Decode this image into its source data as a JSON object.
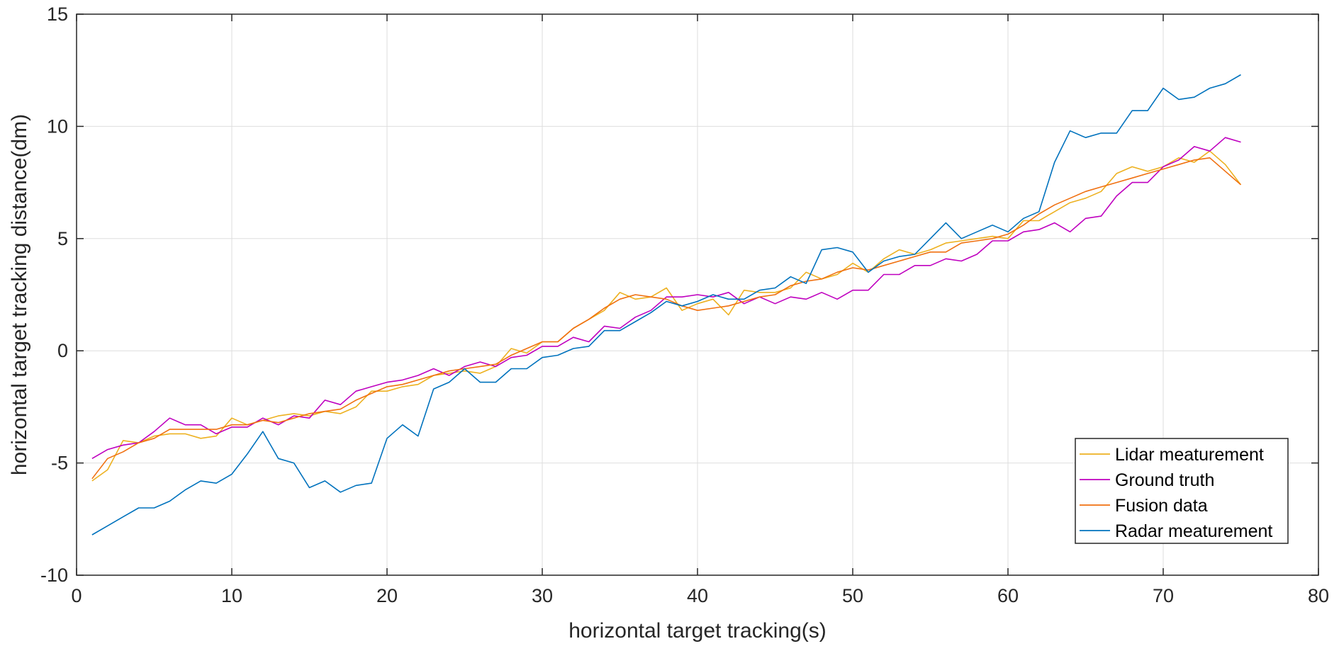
{
  "chart_data": {
    "type": "line",
    "title": "",
    "xlabel": "horizontal target tracking(s)",
    "ylabel": "horizontal target tracking distance(dm)",
    "xlim": [
      0,
      80
    ],
    "ylim": [
      -10,
      15
    ],
    "xticks": [
      0,
      10,
      20,
      30,
      40,
      50,
      60,
      70,
      80
    ],
    "yticks": [
      -10,
      -5,
      0,
      5,
      10,
      15
    ],
    "xtick_labels": [
      "0",
      "10",
      "20",
      "30",
      "40",
      "50",
      "60",
      "70",
      "80"
    ],
    "ytick_labels": [
      "-10",
      "-5",
      "0",
      "5",
      "10",
      "15"
    ],
    "grid": true,
    "legend_position": "bottom-right",
    "x": [
      1,
      2,
      3,
      4,
      5,
      6,
      7,
      8,
      9,
      10,
      11,
      12,
      13,
      14,
      15,
      16,
      17,
      18,
      19,
      20,
      21,
      22,
      23,
      24,
      25,
      26,
      27,
      28,
      29,
      30,
      31,
      32,
      33,
      34,
      35,
      36,
      37,
      38,
      39,
      40,
      41,
      42,
      43,
      44,
      45,
      46,
      47,
      48,
      49,
      50,
      51,
      52,
      53,
      54,
      55,
      56,
      57,
      58,
      59,
      60,
      61,
      62,
      63,
      64,
      65,
      66,
      67,
      68,
      69,
      70,
      71,
      72,
      73,
      74,
      75
    ],
    "series": [
      {
        "name": "Lidar meaturement",
        "color": "#EDB120",
        "values": [
          -5.8,
          -5.3,
          -4.0,
          -4.1,
          -3.8,
          -3.7,
          -3.7,
          -3.9,
          -3.8,
          -3.0,
          -3.3,
          -3.1,
          -2.9,
          -2.8,
          -2.9,
          -2.7,
          -2.8,
          -2.5,
          -1.8,
          -1.8,
          -1.6,
          -1.5,
          -1.1,
          -1.0,
          -0.9,
          -1.0,
          -0.7,
          0.1,
          -0.1,
          0.4,
          0.4,
          1.0,
          1.4,
          1.8,
          2.6,
          2.3,
          2.4,
          2.8,
          1.8,
          2.1,
          2.3,
          1.6,
          2.7,
          2.6,
          2.6,
          2.8,
          3.5,
          3.2,
          3.4,
          3.9,
          3.5,
          4.1,
          4.5,
          4.3,
          4.5,
          4.8,
          4.9,
          5.0,
          5.1,
          5.0,
          5.8,
          5.8,
          6.2,
          6.6,
          6.8,
          7.1,
          7.9,
          8.2,
          8.0,
          8.2,
          8.6,
          8.4,
          8.9,
          8.3,
          7.4
        ]
      },
      {
        "name": "Ground truth",
        "color": "#BF00BF",
        "values": [
          -4.8,
          -4.4,
          -4.2,
          -4.1,
          -3.6,
          -3.0,
          -3.3,
          -3.3,
          -3.7,
          -3.4,
          -3.4,
          -3.0,
          -3.3,
          -2.9,
          -3.0,
          -2.2,
          -2.4,
          -1.8,
          -1.6,
          -1.4,
          -1.3,
          -1.1,
          -0.8,
          -1.1,
          -0.7,
          -0.5,
          -0.7,
          -0.3,
          -0.2,
          0.2,
          0.2,
          0.6,
          0.4,
          1.1,
          1.0,
          1.5,
          1.8,
          2.4,
          2.4,
          2.5,
          2.4,
          2.6,
          2.1,
          2.4,
          2.1,
          2.4,
          2.3,
          2.6,
          2.3,
          2.7,
          2.7,
          3.4,
          3.4,
          3.8,
          3.8,
          4.1,
          4.0,
          4.3,
          4.9,
          4.9,
          5.3,
          5.4,
          5.7,
          5.3,
          5.9,
          6.0,
          6.9,
          7.5,
          7.5,
          8.2,
          8.5,
          9.1,
          8.9,
          9.5,
          9.3
        ]
      },
      {
        "name": "Fusion data",
        "color": "#F07010",
        "values": [
          -5.7,
          -4.8,
          -4.5,
          -4.1,
          -3.9,
          -3.5,
          -3.5,
          -3.5,
          -3.5,
          -3.3,
          -3.3,
          -3.1,
          -3.2,
          -3.0,
          -2.8,
          -2.7,
          -2.6,
          -2.2,
          -1.9,
          -1.6,
          -1.5,
          -1.3,
          -1.1,
          -0.9,
          -0.8,
          -0.7,
          -0.6,
          -0.2,
          0.1,
          0.4,
          0.4,
          1.0,
          1.4,
          1.9,
          2.3,
          2.5,
          2.4,
          2.3,
          2.0,
          1.8,
          1.9,
          2.0,
          2.2,
          2.4,
          2.5,
          2.9,
          3.1,
          3.2,
          3.5,
          3.7,
          3.6,
          3.8,
          4.0,
          4.2,
          4.4,
          4.4,
          4.8,
          4.9,
          5.0,
          5.2,
          5.6,
          6.1,
          6.5,
          6.8,
          7.1,
          7.3,
          7.5,
          7.7,
          7.9,
          8.1,
          8.3,
          8.5,
          8.6,
          8.0,
          7.4
        ]
      },
      {
        "name": "Radar meaturement",
        "color": "#0072BD",
        "values": [
          -8.2,
          -7.8,
          -7.4,
          -7.0,
          -7.0,
          -6.7,
          -6.2,
          -5.8,
          -5.9,
          -5.5,
          -4.6,
          -3.6,
          -4.8,
          -5.0,
          -6.1,
          -5.8,
          -6.3,
          -6.0,
          -5.9,
          -3.9,
          -3.3,
          -3.8,
          -1.7,
          -1.4,
          -0.8,
          -1.4,
          -1.4,
          -0.8,
          -0.8,
          -0.3,
          -0.2,
          0.1,
          0.2,
          0.9,
          0.9,
          1.3,
          1.7,
          2.2,
          2.0,
          2.2,
          2.5,
          2.3,
          2.3,
          2.7,
          2.8,
          3.3,
          3.0,
          4.5,
          4.6,
          4.4,
          3.5,
          4.0,
          4.2,
          4.3,
          5.0,
          5.7,
          5.0,
          5.3,
          5.6,
          5.3,
          5.9,
          6.2,
          8.4,
          9.8,
          9.5,
          9.7,
          9.7,
          10.7,
          10.7,
          11.7,
          11.2,
          11.3,
          11.7,
          11.9,
          12.3
        ]
      }
    ]
  }
}
